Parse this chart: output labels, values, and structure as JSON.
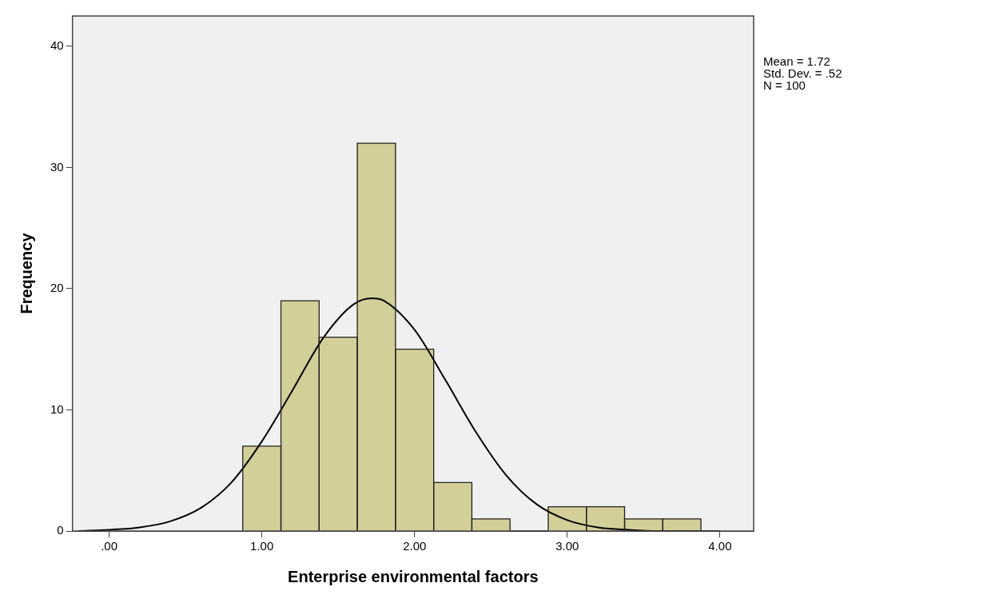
{
  "chart_data": {
    "type": "histogram",
    "xlabel": "Enterprise environmental factors",
    "ylabel": "Frequency",
    "bins": [
      0.875,
      1.125,
      1.375,
      1.625,
      1.875,
      2.125,
      2.375,
      2.625,
      2.875,
      3.125,
      3.375,
      3.625,
      3.875
    ],
    "values": [
      7,
      19,
      16,
      32,
      15,
      4,
      1,
      0,
      2,
      2,
      1,
      1
    ],
    "color": "#d3cf98",
    "xlim": [
      -0.24,
      4.22
    ],
    "ylim": [
      0,
      42.5
    ],
    "xticks": [
      {
        "value": 0,
        "label": ".00"
      },
      {
        "value": 1,
        "label": "1.00"
      },
      {
        "value": 2,
        "label": "2.00"
      },
      {
        "value": 3,
        "label": "3.00"
      },
      {
        "value": 4,
        "label": "4.00"
      }
    ],
    "yticks": [
      0,
      10,
      20,
      30,
      40
    ],
    "annotations": [
      "Mean = 1.72",
      "Std. Dev. = .52",
      "N = 100"
    ],
    "series": [
      {
        "type": "line",
        "color": "#000000",
        "x": [
          -0.2,
          0,
          0.2,
          0.4,
          0.6,
          0.8,
          1.0,
          1.2,
          1.4,
          1.6,
          1.72,
          1.8,
          2.0,
          2.2,
          2.4,
          2.6,
          2.8,
          3.0,
          3.2,
          3.4,
          3.6,
          3.8,
          4.0
        ],
        "values": [
          0,
          0.1,
          0.3,
          0.8,
          1.9,
          4.0,
          7.4,
          11.6,
          15.9,
          18.7,
          19.2,
          19.0,
          16.6,
          12.5,
          8.2,
          4.6,
          2.2,
          0.9,
          0.3,
          0.1,
          0,
          0,
          0
        ]
      }
    ]
  }
}
